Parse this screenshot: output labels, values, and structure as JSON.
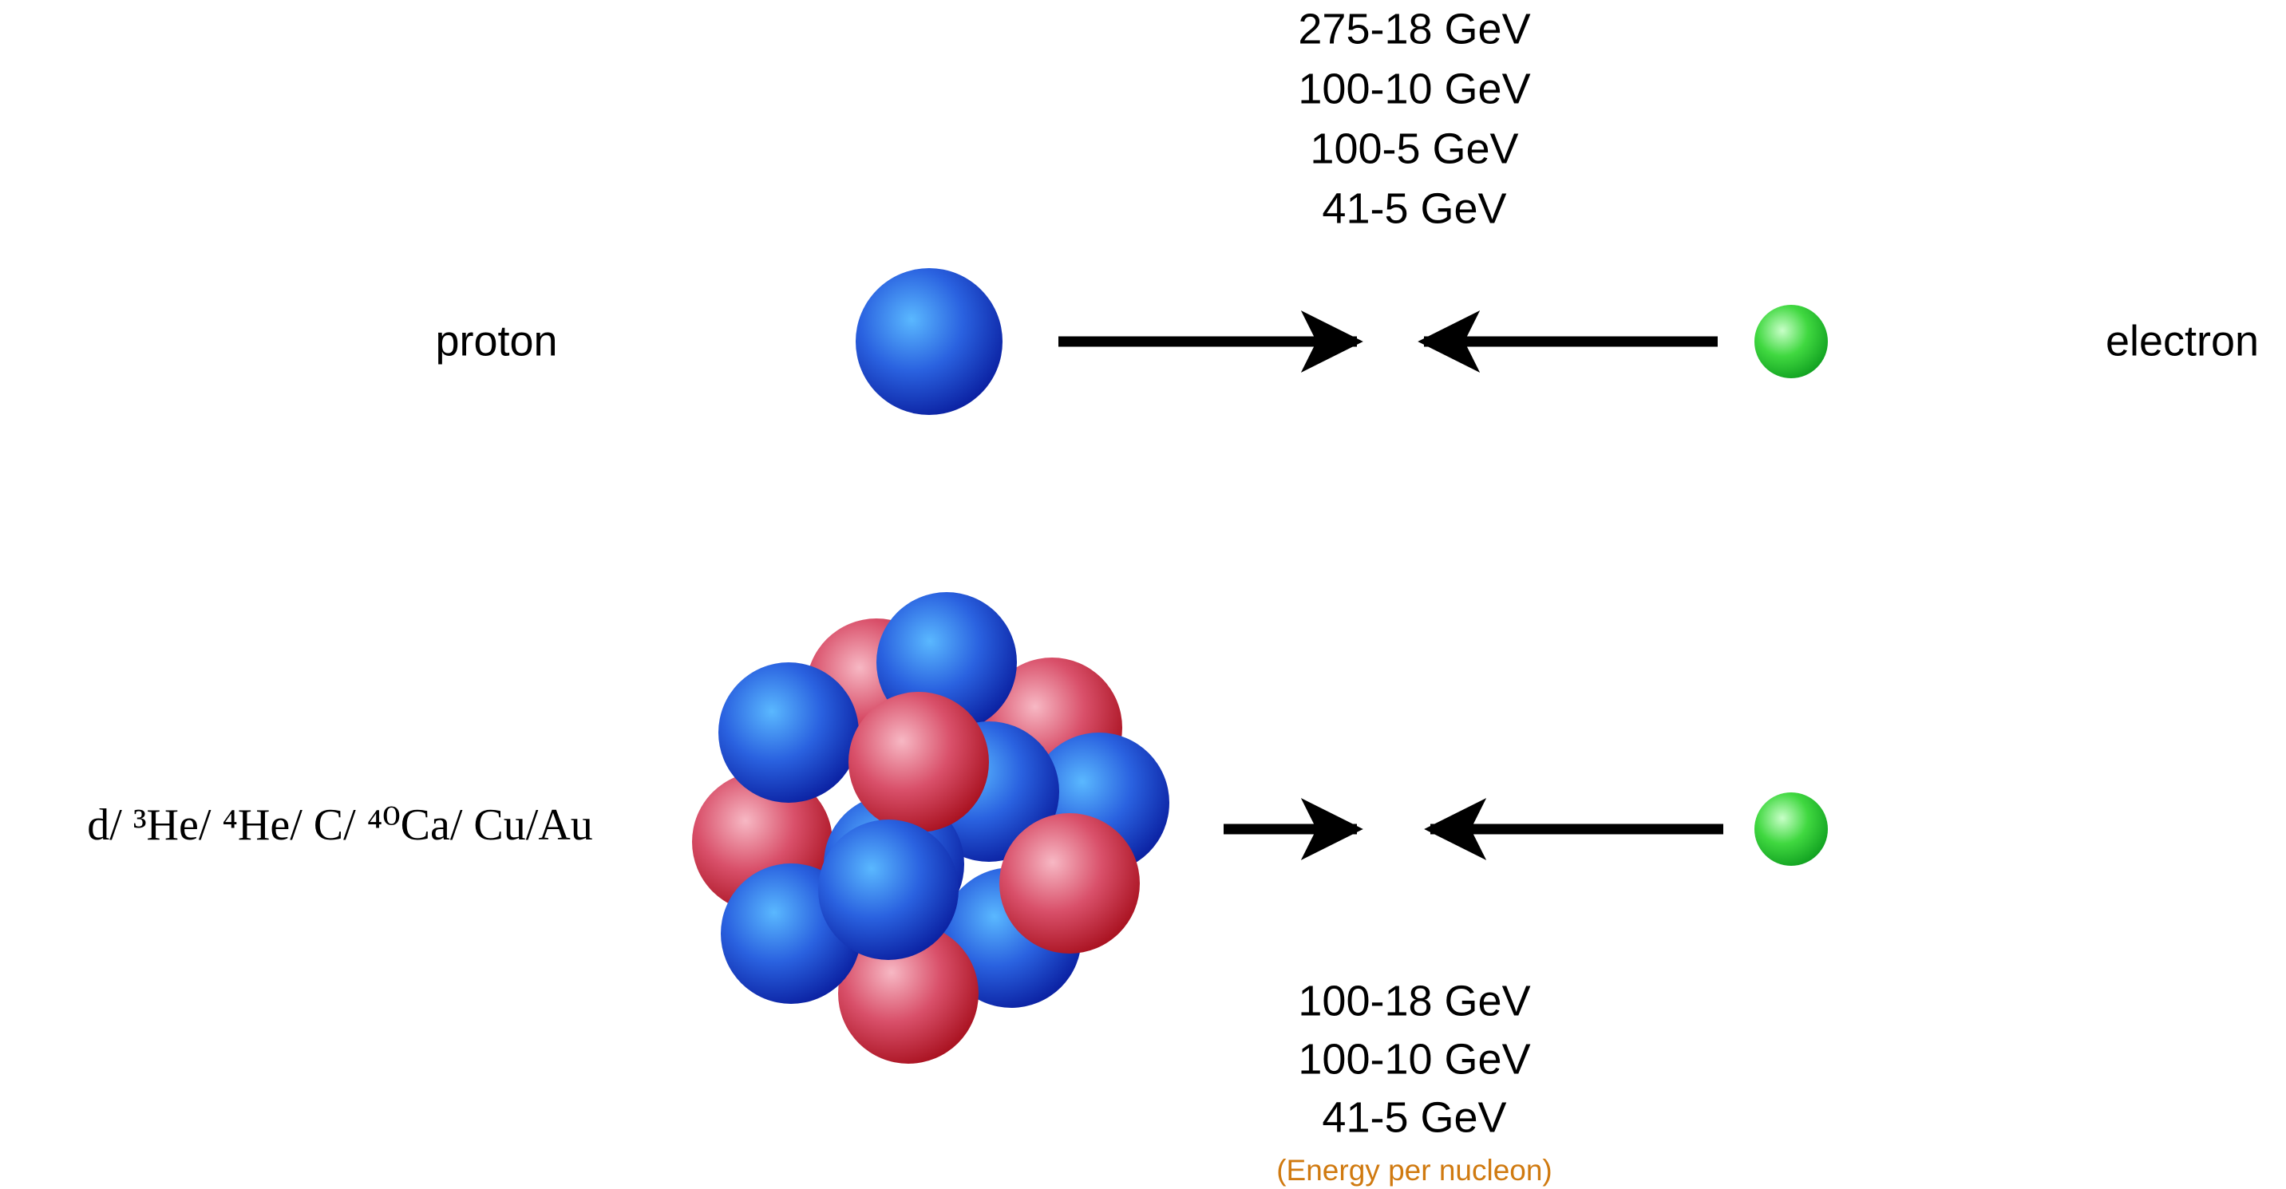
{
  "top_energies": [
    "275-18 GeV",
    "100-10 GeV",
    "100-5 GeV",
    "41-5 GeV"
  ],
  "proton_label": "proton",
  "electron_label": "electron",
  "nucleus_label": "d/ ³He/ ⁴He/ C/ ⁴⁰Ca/ Cu/Au",
  "bottom_energies": [
    "100-18 GeV",
    "100-10 GeV",
    "41-5 GeV"
  ],
  "note": "(Energy per nucleon)"
}
